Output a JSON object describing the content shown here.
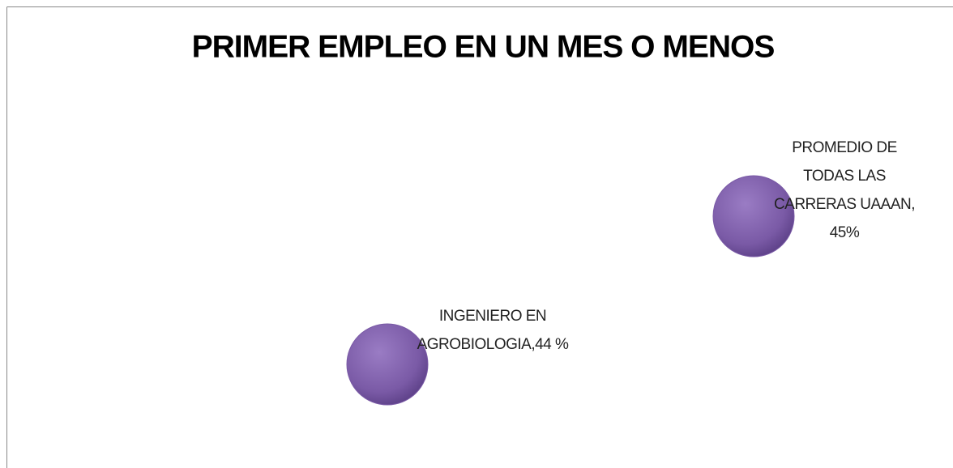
{
  "chart_data": {
    "type": "bubble",
    "title": "PRIMER EMPLEO EN UN MES O MENOS",
    "values": [
      44,
      45
    ],
    "value_labels": [
      "INGENIERO EN AGROBIOLOGIA,44 %",
      "PROMEDIO DE TODAS LAS CARRERAS UAAAN, 45%"
    ],
    "color": "#7a5aa6",
    "ylim": [
      43.5,
      45.5
    ]
  }
}
